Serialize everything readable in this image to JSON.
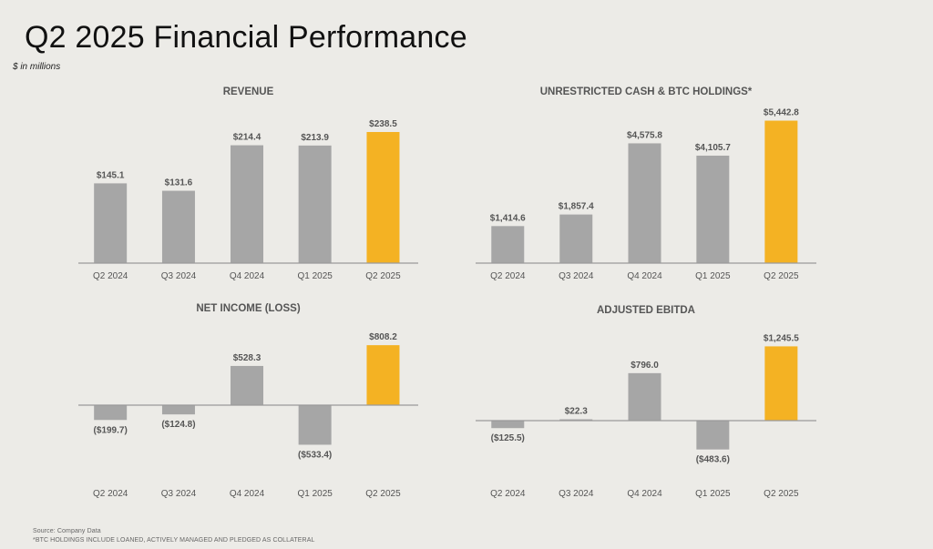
{
  "header": {
    "title": "Q2 2025 Financial Performance",
    "subtitle": "$ in millions"
  },
  "footer": {
    "source": "Source: Company Data",
    "note": "*BTC HOLDINGS INCLUDE LOANED, ACTIVELY MANAGED AND PLEDGED AS COLLATERAL"
  },
  "colors": {
    "bar": "#a6a6a6",
    "highlight": "#f4b223",
    "axis": "#9a9a9a",
    "text": "#555555"
  },
  "chart_data": [
    {
      "type": "bar",
      "title": "REVENUE",
      "categories": [
        "Q2 2024",
        "Q3 2024",
        "Q4 2024",
        "Q1 2025",
        "Q2 2025"
      ],
      "values": [
        145.1,
        131.6,
        214.4,
        213.9,
        238.5
      ],
      "labels": [
        "$145.1",
        "$131.6",
        "$214.4",
        "$213.9",
        "$238.5"
      ],
      "highlight_index": 4,
      "ylim": [
        0,
        260
      ]
    },
    {
      "type": "bar",
      "title": "UNRESTRICTED CASH & BTC HOLDINGS*",
      "categories": [
        "Q2 2024",
        "Q3 2024",
        "Q4 2024",
        "Q1 2025",
        "Q2 2025"
      ],
      "values": [
        1414.6,
        1857.4,
        4575.8,
        4105.7,
        5442.8
      ],
      "labels": [
        "$1,414.6",
        "$1,857.4",
        "$4,575.8",
        "$4,105.7",
        "$5,442.8"
      ],
      "highlight_index": 4,
      "ylim": [
        0,
        6000
      ]
    },
    {
      "type": "bar",
      "title": "NET INCOME (LOSS)",
      "categories": [
        "Q2 2024",
        "Q3 2024",
        "Q4 2024",
        "Q1 2025",
        "Q2 2025"
      ],
      "values": [
        -199.7,
        -124.8,
        528.3,
        -533.4,
        808.2
      ],
      "labels": [
        "($199.7)",
        "($124.8)",
        "$528.3",
        "($533.4)",
        "$808.2"
      ],
      "highlight_index": 4,
      "ylim": [
        -1000,
        1000
      ]
    },
    {
      "type": "bar",
      "title": "ADJUSTED EBITDA",
      "categories": [
        "Q2 2024",
        "Q3 2024",
        "Q4 2024",
        "Q1 2025",
        "Q2 2025"
      ],
      "values": [
        -125.5,
        22.3,
        796.0,
        -483.6,
        1245.5
      ],
      "labels": [
        "($125.5)",
        "$22.3",
        "$796.0",
        "($483.6)",
        "$1,245.5"
      ],
      "highlight_index": 4,
      "ylim": [
        -1500,
        1500
      ]
    }
  ]
}
